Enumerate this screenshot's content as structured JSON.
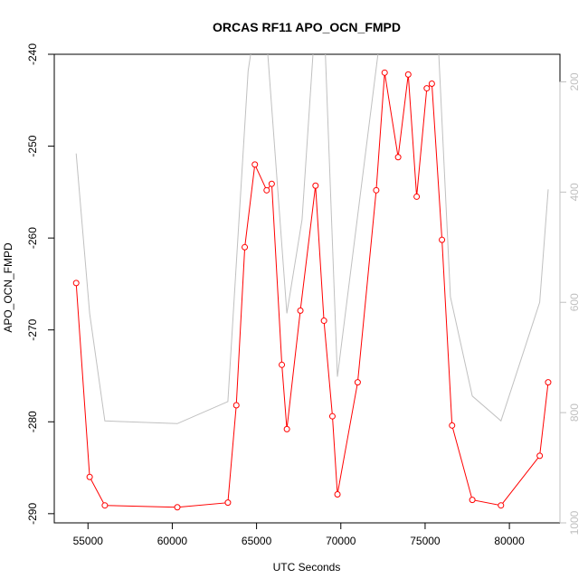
{
  "chart_data": {
    "type": "line",
    "title": "ORCAS RF11 APO_OCN_FMPD",
    "xlabel": "UTC Seconds",
    "ylabel": "APO_OCN_FMPD",
    "xlim": [
      53000,
      83000
    ],
    "ylim": [
      -291,
      -240
    ],
    "xticks": [
      55000,
      60000,
      65000,
      70000,
      75000,
      80000
    ],
    "yticks": [
      -290,
      -280,
      -270,
      -260,
      -250,
      -240
    ],
    "y2lim": [
      1000,
      150
    ],
    "y2ticks": [
      200,
      400,
      600,
      800,
      1000
    ],
    "grid": false,
    "series": [
      {
        "axis": "left",
        "color": "#ff0000",
        "marker": "circle",
        "x": [
          54300,
          55100,
          56000,
          60300,
          63300,
          63800,
          64300,
          64900,
          65600,
          65900,
          66500,
          66800,
          67600,
          68500,
          69000,
          69500,
          69800,
          71000,
          72100,
          72600,
          73400,
          74000,
          74500,
          75100,
          75400,
          76000,
          76600,
          77800,
          79500,
          81800,
          82300
        ],
        "y": [
          -264.9,
          -286.0,
          -289.1,
          -289.3,
          -288.8,
          -278.2,
          -261.0,
          -252.0,
          -254.8,
          -254.1,
          -273.8,
          -280.8,
          -267.9,
          -254.3,
          -269.0,
          -279.4,
          -287.9,
          -275.7,
          -254.8,
          -242.0,
          -251.2,
          -242.2,
          -255.5,
          -243.7,
          -243.2,
          -260.2,
          -280.4,
          -288.5,
          -289.1,
          -283.7,
          -275.7
        ]
      },
      {
        "axis": "right",
        "color": "#c0c0c0",
        "marker": "none",
        "x": [
          54300,
          55100,
          56000,
          60300,
          63300,
          64500,
          65000,
          65500,
          66800,
          67700,
          68500,
          69000,
          69800,
          72200,
          72600,
          73400,
          74000,
          74500,
          75700,
          76500,
          77800,
          79500,
          81800,
          82300
        ],
        "y": [
          330,
          620,
          815,
          820,
          780,
          180,
          80,
          80,
          620,
          450,
          80,
          80,
          735,
          150,
          80,
          140,
          80,
          140,
          80,
          590,
          770,
          815,
          600,
          395
        ]
      }
    ]
  }
}
